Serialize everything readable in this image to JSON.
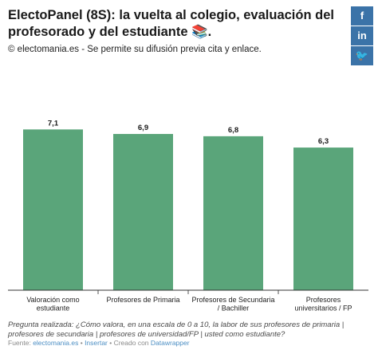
{
  "header": {
    "title": "ElectoPanel (8S): la vuelta al colegio, evaluación del profesorado y del estudiante 📚.",
    "subtitle": "© electomania.es - Se permite su difusión previa cita y enlace."
  },
  "share": {
    "facebook_label": "f",
    "linkedin_label": "in",
    "twitter_label": "🐦"
  },
  "colors": {
    "bar": "#5aa57a",
    "share_bg": "#3b73a8",
    "link": "#4d8fc4"
  },
  "chart_data": {
    "type": "bar",
    "categories": [
      "Valoración como estudiante",
      "Profesores de Primaria",
      "Profesores de Secundaria / Bachiller",
      "Profesores universitarios / FP"
    ],
    "values": [
      7.1,
      6.9,
      6.8,
      6.3
    ],
    "value_labels": [
      "7,1",
      "6,9",
      "6,8",
      "6,3"
    ],
    "title": "",
    "xlabel": "",
    "ylabel": "",
    "ylim": [
      0,
      10
    ],
    "grid": false
  },
  "footer": {
    "note": "Pregunta realizada: ¿Cómo valora, en una escala de 0 a 10, la labor de sus profesores de primaria | profesores de secundaria | profesores de universidad/FP | usted como estudiante?",
    "source_prefix": "Fuente: ",
    "source_link": "electomania.es",
    "separator1": " • ",
    "insert_link": "Insertar",
    "separator2": " • Creado con ",
    "datawrapper_link": "Datawrapper"
  }
}
